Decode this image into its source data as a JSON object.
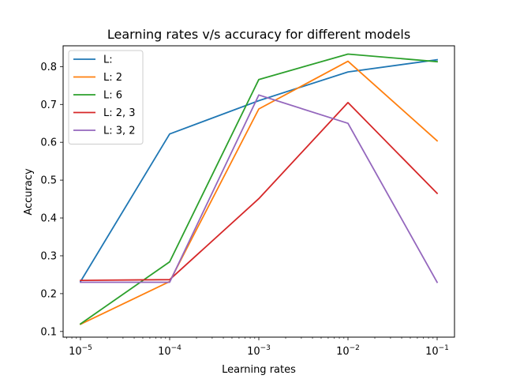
{
  "chart_data": {
    "type": "line",
    "title": "Learning rates v/s accuracy for different models",
    "xlabel": "Learning rates",
    "ylabel": "Accuracy",
    "xscale": "log",
    "x": [
      1e-05,
      0.0001,
      0.001,
      0.01,
      0.1
    ],
    "xticks": [
      {
        "base": "10",
        "exp": "−5"
      },
      {
        "base": "10",
        "exp": "−4"
      },
      {
        "base": "10",
        "exp": "−3"
      },
      {
        "base": "10",
        "exp": "−2"
      },
      {
        "base": "10",
        "exp": "−1"
      }
    ],
    "yticks": [
      "0.1",
      "0.2",
      "0.3",
      "0.4",
      "0.5",
      "0.6",
      "0.7",
      "0.8"
    ],
    "ylim": [
      0.085,
      0.855
    ],
    "legend_position": "upper-left",
    "series": [
      {
        "name": "L: ",
        "color": "#1f77b4",
        "values": [
          0.232,
          0.622,
          0.71,
          0.786,
          0.818
        ]
      },
      {
        "name": "L: 2",
        "color": "#ff7f0e",
        "values": [
          0.119,
          0.232,
          0.688,
          0.814,
          0.604
        ]
      },
      {
        "name": "L: 6",
        "color": "#2ca02c",
        "values": [
          0.12,
          0.284,
          0.766,
          0.833,
          0.813
        ]
      },
      {
        "name": "L: 2, 3",
        "color": "#d62728",
        "values": [
          0.235,
          0.237,
          0.451,
          0.705,
          0.465
        ]
      },
      {
        "name": "L: 3, 2",
        "color": "#9467bd",
        "values": [
          0.23,
          0.23,
          0.725,
          0.65,
          0.23
        ]
      }
    ]
  }
}
